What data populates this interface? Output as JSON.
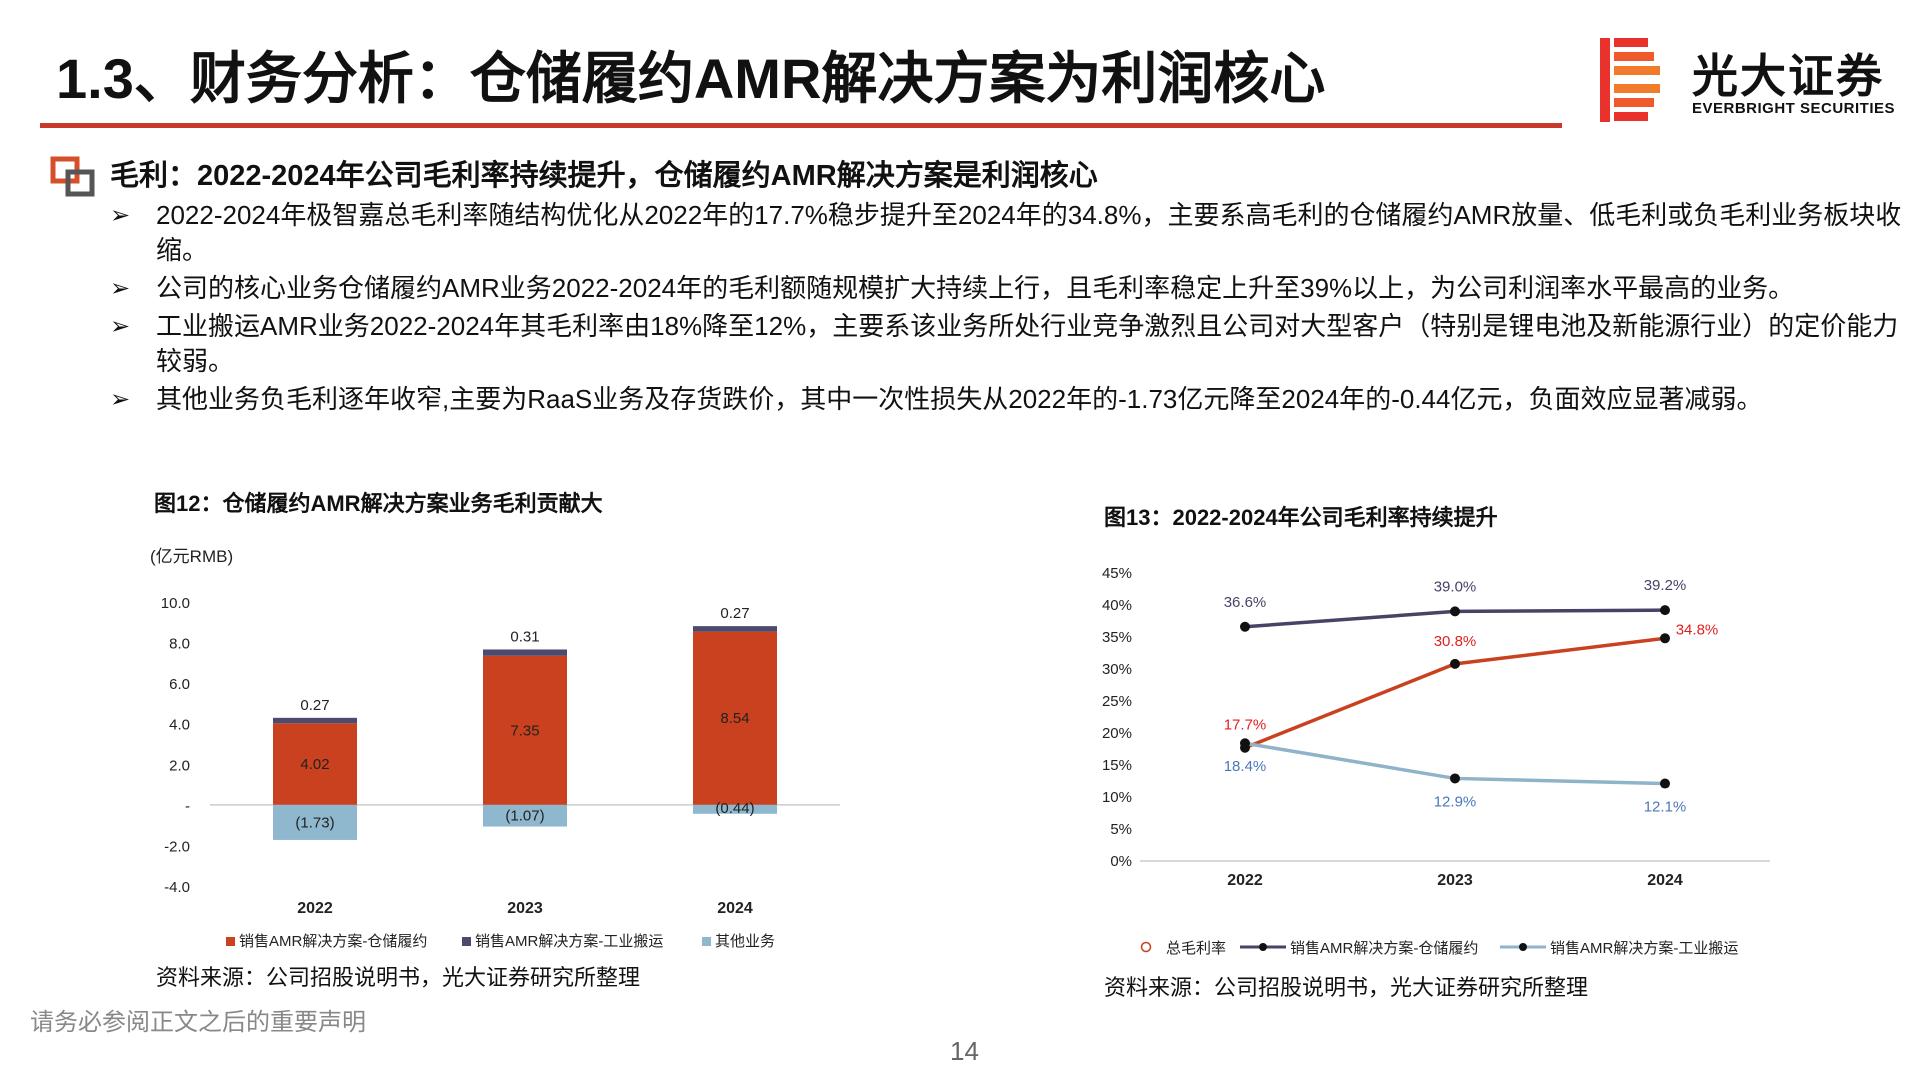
{
  "header": {
    "title": "1.3、财务分析：仓储履约AMR解决方案为利润核心",
    "logo_cn": "光大证券",
    "logo_en": "EVERBRIGHT SECURITIES"
  },
  "section": {
    "heading": "毛利：2022-2024年公司毛利率持续提升，仓储履约AMR解决方案是利润核心",
    "bullet_glyph": "➢",
    "bullets": [
      "2022-2024年极智嘉总毛利率随结构优化从2022年的17.7%稳步提升至2024年的34.8%，主要系高毛利的仓储履约AMR放量、低毛利或负毛利业务板块收缩。",
      "公司的核心业务仓储履约AMR业务2022-2024年的毛利额随规模扩大持续上行，且毛利率稳定上升至39%以上，为公司利润率水平最高的业务。",
      "工业搬运AMR业务2022-2024年其毛利率由18%降至12%，主要系该业务所处行业竞争激烈且公司对大型客户（特别是锂电池及新能源行业）的定价能力较弱。",
      "其他业务负毛利逐年收窄,主要为RaaS业务及存货跌价，其中一次性损失从2022年的-1.73亿元降至2024年的-0.44亿元，负面效应显著减弱。"
    ]
  },
  "figures": {
    "fig12_title": "图12：仓储履约AMR解决方案业务毛利贡献大",
    "fig13_title": "图13：2022-2024年公司毛利率持续提升",
    "source_left": "资料来源：公司招股说明书，光大证券研究所整理",
    "source_right": "资料来源：公司招股说明书，光大证券研究所整理"
  },
  "footer": {
    "disclaimer": "请务必参阅正文之后的重要声明",
    "page": "14"
  },
  "colors": {
    "accent": "#c8392b",
    "bar_warehouse": "#c9411f",
    "bar_industrial": "#4e4a6e",
    "bar_other": "#8fb8cf",
    "line_total": "#c9411f",
    "line_warehouse": "#4a4266",
    "line_industrial": "#8fb3c8"
  },
  "chart_data": [
    {
      "type": "bar",
      "stacked": true,
      "unit_label": "(亿元RMB)",
      "categories": [
        "2022",
        "2023",
        "2024"
      ],
      "ylim": [
        -4.0,
        10.0
      ],
      "yticks": [
        10.0,
        8.0,
        6.0,
        4.0,
        2.0,
        0,
        -2.0,
        -4.0
      ],
      "ytick_labels": [
        "10.0",
        "8.0",
        "6.0",
        "4.0",
        "2.0",
        "-",
        "-2.0",
        "-4.0"
      ],
      "series": [
        {
          "name": "销售AMR解决方案-仓储履约",
          "values": [
            4.02,
            7.35,
            8.54
          ],
          "labels": [
            "4.02",
            "7.35",
            "8.54"
          ]
        },
        {
          "name": "销售AMR解决方案-工业搬运",
          "values": [
            0.27,
            0.31,
            0.27
          ],
          "labels": [
            "0.27",
            "0.31",
            "0.27"
          ]
        },
        {
          "name": "其他业务",
          "values": [
            -1.73,
            -1.07,
            -0.44
          ],
          "labels": [
            "(1.73)",
            "(1.07)",
            "(0.44)"
          ]
        }
      ],
      "legend_position": "bottom"
    },
    {
      "type": "line",
      "categories": [
        "2022",
        "2023",
        "2024"
      ],
      "ylim": [
        0,
        45
      ],
      "yticks": [
        45,
        40,
        35,
        30,
        25,
        20,
        15,
        10,
        5,
        0
      ],
      "ytick_labels": [
        "45%",
        "40%",
        "35%",
        "30%",
        "25%",
        "20%",
        "15%",
        "10%",
        "5%",
        "0%"
      ],
      "series": [
        {
          "name": "总毛利率",
          "values": [
            17.7,
            30.8,
            34.8
          ],
          "labels": [
            "17.7%",
            "30.8%",
            "34.8%"
          ]
        },
        {
          "name": "销售AMR解决方案-仓储履约",
          "values": [
            36.6,
            39.0,
            39.2
          ],
          "labels": [
            "36.6%",
            "39.0%",
            "39.2%"
          ]
        },
        {
          "name": "销售AMR解决方案-工业搬运",
          "values": [
            18.4,
            12.9,
            12.1
          ],
          "labels": [
            "18.4%",
            "12.9%",
            "12.1%"
          ]
        }
      ],
      "legend_position": "bottom"
    }
  ]
}
